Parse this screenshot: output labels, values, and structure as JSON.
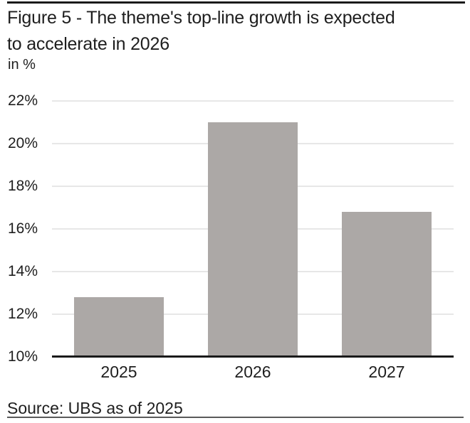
{
  "header": {
    "title_line1": "Figure 5 - The theme's top-line growth is expected",
    "title_line2": "to accelerate in 2026",
    "unit_label": "in %"
  },
  "footer": {
    "source": "Source: UBS as of 2025"
  },
  "colors": {
    "bar": "#aca8a6",
    "gridline": "#e7e7e7",
    "axis": "#1a1a1a",
    "text": "#1e1e1e",
    "top_rule": "#1a1a1a",
    "bottom_rule": "#5a5a5a"
  },
  "chart_data": {
    "type": "bar",
    "title": "Figure 5 - The theme's top-line growth is expected to accelerate in 2026",
    "subtitle": "in %",
    "categories": [
      "2025",
      "2026",
      "2027"
    ],
    "values": [
      12.8,
      21.0,
      16.8
    ],
    "xlabel": "",
    "ylabel": "in %",
    "ylim": [
      10,
      22
    ],
    "yticks": [
      10,
      12,
      14,
      16,
      18,
      20,
      22
    ],
    "ytick_labels": [
      "10%",
      "12%",
      "14%",
      "16%",
      "18%",
      "20%",
      "22%"
    ],
    "grid": true,
    "legend": false,
    "bar_color": "#aca8a6",
    "source": "Source: UBS as of 2025"
  }
}
